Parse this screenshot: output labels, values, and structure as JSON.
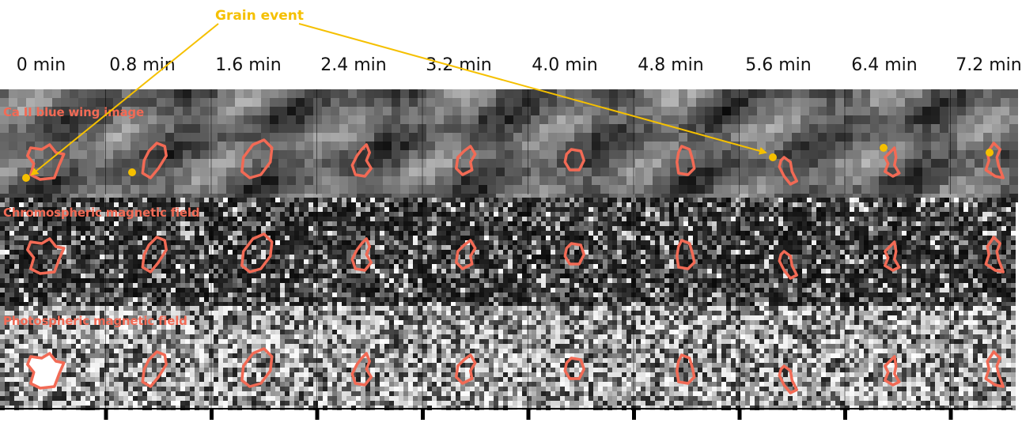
{
  "annotation": {
    "label": "Grain event",
    "color": "#f5c000"
  },
  "time_labels": [
    "0 min",
    "0.8 min",
    "1.6 min",
    "2.4 min",
    "3.2 min",
    "4.0 min",
    "4.8 min",
    "5.6 min",
    "6.4 min",
    "7.2 min"
  ],
  "rows": [
    {
      "label": "Ca II blue wing image",
      "type": "smooth"
    },
    {
      "label": "Chromospheric magnetic field",
      "type": "dark-noise"
    },
    {
      "label": "Photospheric magnetic field",
      "type": "bright-noise"
    }
  ],
  "colors": {
    "contour": "#f26a55",
    "row_label": "#f26a55",
    "marker": "#f5c000"
  }
}
